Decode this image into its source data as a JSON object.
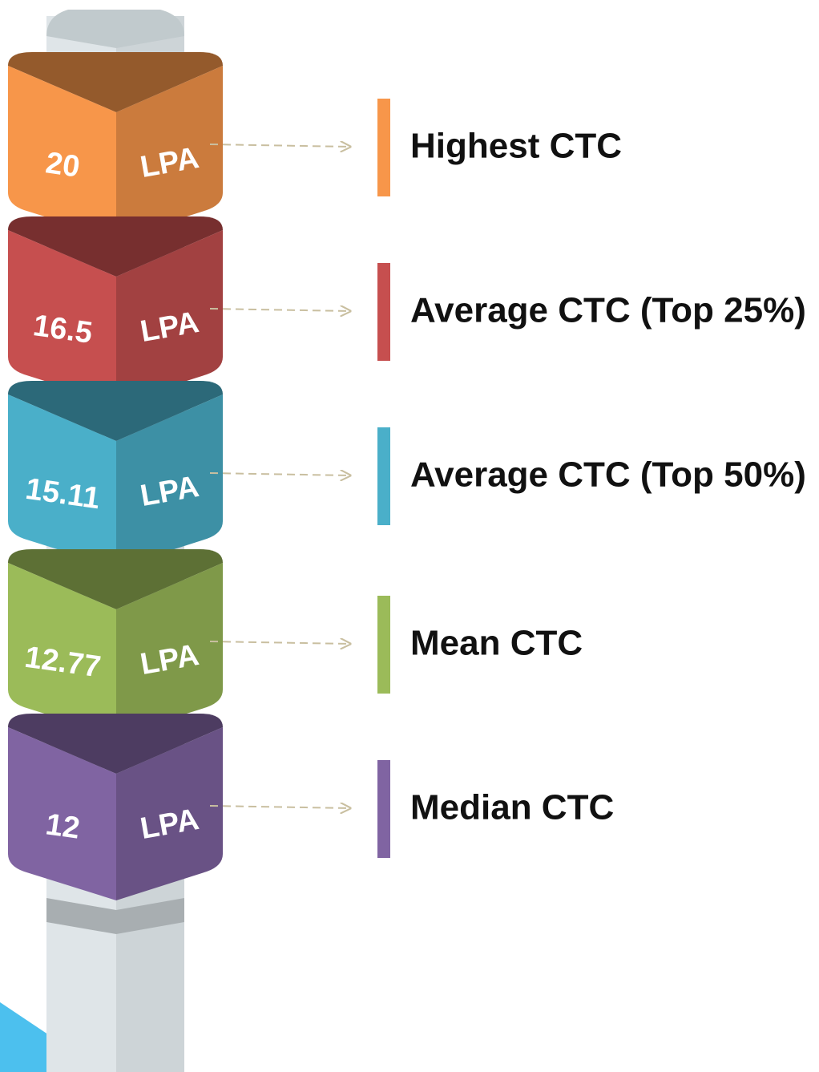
{
  "items": [
    {
      "value": "20",
      "unit": "LPA",
      "label": "Highest CTC",
      "color": "#f7964a"
    },
    {
      "value": "16.5",
      "unit": "LPA",
      "label": "Average CTC (Top 25%)",
      "color": "#c64f4f"
    },
    {
      "value": "15.11",
      "unit": "LPA",
      "label": "Average CTC (Top 50%)",
      "color": "#4aafc9"
    },
    {
      "value": "12.77",
      "unit": "LPA",
      "label": "Mean CTC",
      "color": "#9bbb59"
    },
    {
      "value": "12",
      "unit": "LPA",
      "label": "Median CTC",
      "color": "#8064a2"
    }
  ]
}
